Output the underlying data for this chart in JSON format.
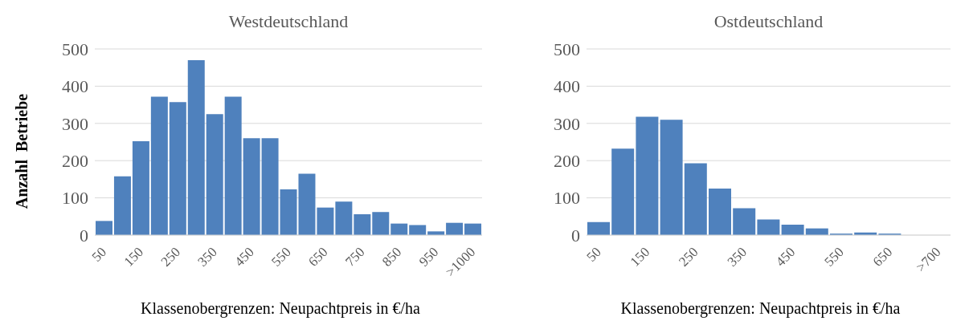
{
  "chart_data": [
    {
      "type": "bar",
      "title": "Westdeutschland",
      "ylabel": "Anzahl  Betriebe",
      "xlabel": "Klassenobergrenzen: Neupachtpreis in €/ha",
      "categories": [
        "50",
        null,
        "150",
        null,
        "250",
        null,
        "350",
        null,
        "450",
        null,
        "550",
        null,
        "650",
        null,
        "750",
        null,
        "850",
        null,
        "950",
        null,
        ">1000"
      ],
      "values": [
        38,
        158,
        252,
        372,
        357,
        470,
        325,
        372,
        260,
        260,
        123,
        165,
        74,
        90,
        56,
        62,
        31,
        27,
        10,
        33,
        31
      ],
      "color": "#4f81bd",
      "ylim": [
        0,
        500
      ],
      "yticks": [
        0,
        100,
        200,
        300,
        400,
        500
      ],
      "grid": "y"
    },
    {
      "type": "bar",
      "title": "Ostdeutschland",
      "xlabel": "Klassenobergrenzen: Neupachtpreis in €/ha",
      "categories": [
        "50",
        null,
        "150",
        null,
        "250",
        null,
        "350",
        null,
        "450",
        null,
        "550",
        null,
        "650",
        null,
        ">700"
      ],
      "values": [
        35,
        232,
        318,
        310,
        193,
        125,
        72,
        42,
        28,
        18,
        4,
        7,
        4,
        0,
        0
      ],
      "color": "#4f81bd",
      "ylim": [
        0,
        500
      ],
      "yticks": [
        0,
        100,
        200,
        300,
        400,
        500
      ],
      "grid": "y"
    }
  ]
}
